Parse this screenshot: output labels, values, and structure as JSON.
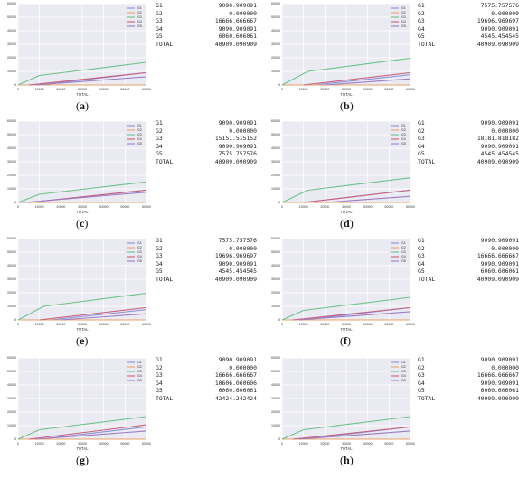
{
  "colors": {
    "G1": "#8a8fd6",
    "G2": "#e8a06b",
    "G3": "#6ec28a",
    "G4": "#c8607a",
    "G5": "#9c7cc4",
    "grid": "#ffffff",
    "bg": "#eaeaf2"
  },
  "panels": [
    {
      "label": "a",
      "stats": [
        {
          "name": "G1",
          "value": "9090.909091"
        },
        {
          "name": "G2",
          "value": "0.000000"
        },
        {
          "name": "G3",
          "value": "16666.666667"
        },
        {
          "name": "G4",
          "value": "9090.909091"
        },
        {
          "name": "G5",
          "value": "6060.606061"
        },
        {
          "name": "TOTAL",
          "value": "40909.090909"
        }
      ]
    },
    {
      "label": "b",
      "stats": [
        {
          "name": "G1",
          "value": "7575.757576"
        },
        {
          "name": "G2",
          "value": "0.000000"
        },
        {
          "name": "G3",
          "value": "19696.969697"
        },
        {
          "name": "G4",
          "value": "9090.909091"
        },
        {
          "name": "G5",
          "value": "4545.454545"
        },
        {
          "name": "TOTAL",
          "value": "40909.090909"
        }
      ]
    },
    {
      "label": "c",
      "stats": [
        {
          "name": "G1",
          "value": "9090.909091"
        },
        {
          "name": "G2",
          "value": "0.000000"
        },
        {
          "name": "G3",
          "value": "15151.515152"
        },
        {
          "name": "G4",
          "value": "9090.909091"
        },
        {
          "name": "G5",
          "value": "7575.757576"
        },
        {
          "name": "TOTAL",
          "value": "40909.090909"
        }
      ]
    },
    {
      "label": "d",
      "stats": [
        {
          "name": "G1",
          "value": "9090.909091"
        },
        {
          "name": "G2",
          "value": "0.000000"
        },
        {
          "name": "G3",
          "value": "18181.818182"
        },
        {
          "name": "G4",
          "value": "9090.909091"
        },
        {
          "name": "G5",
          "value": "4545.454545"
        },
        {
          "name": "TOTAL",
          "value": "40909.090909"
        }
      ]
    },
    {
      "label": "e",
      "stats": [
        {
          "name": "G1",
          "value": "7575.757576"
        },
        {
          "name": "G2",
          "value": "0.000000"
        },
        {
          "name": "G3",
          "value": "19696.969697"
        },
        {
          "name": "G4",
          "value": "9090.909091"
        },
        {
          "name": "G5",
          "value": "4545.454545"
        },
        {
          "name": "TOTAL",
          "value": "40909.090909"
        }
      ]
    },
    {
      "label": "f",
      "stats": [
        {
          "name": "G1",
          "value": "9090.909091"
        },
        {
          "name": "G2",
          "value": "0.000000"
        },
        {
          "name": "G3",
          "value": "16666.666667"
        },
        {
          "name": "G4",
          "value": "9090.909091"
        },
        {
          "name": "G5",
          "value": "6060.606061"
        },
        {
          "name": "TOTAL",
          "value": "40909.090909"
        }
      ]
    },
    {
      "label": "g",
      "stats": [
        {
          "name": "G1",
          "value": "9090.909091"
        },
        {
          "name": "G2",
          "value": "0.000000"
        },
        {
          "name": "G3",
          "value": "16666.666667"
        },
        {
          "name": "G4",
          "value": "10606.060606"
        },
        {
          "name": "G5",
          "value": "6060.606061"
        },
        {
          "name": "TOTAL",
          "value": "42424.242424"
        }
      ]
    },
    {
      "label": "h",
      "stats": [
        {
          "name": "G1",
          "value": "9090.909091"
        },
        {
          "name": "G2",
          "value": "0.000000"
        },
        {
          "name": "G3",
          "value": "16666.666667"
        },
        {
          "name": "G4",
          "value": "9090.909091"
        },
        {
          "name": "G5",
          "value": "6060.606061"
        },
        {
          "name": "TOTAL",
          "value": "40909.090909"
        }
      ]
    }
  ],
  "chart_data": [
    {
      "panel": "a",
      "type": "line",
      "xlabel": "TOTAL",
      "ylabel": "",
      "xlim": [
        0,
        60000
      ],
      "ylim": [
        0,
        60000
      ],
      "xticks": [
        0,
        10000,
        20000,
        30000,
        40000,
        50000,
        60000
      ],
      "yticks": [
        0,
        10000,
        20000,
        30000,
        40000,
        50000,
        60000
      ],
      "grid": true,
      "legend": "top-right",
      "series": [
        {
          "name": "G1",
          "x": [
            10000,
            60000
          ],
          "y": [
            0,
            9091
          ]
        },
        {
          "name": "G2",
          "x": [
            0,
            60000
          ],
          "y": [
            0,
            0
          ]
        },
        {
          "name": "G3",
          "x": [
            0,
            10000,
            60000
          ],
          "y": [
            0,
            7000,
            16667
          ]
        },
        {
          "name": "G4",
          "x": [
            5000,
            60000
          ],
          "y": [
            0,
            9091
          ]
        },
        {
          "name": "G5",
          "x": [
            8000,
            60000
          ],
          "y": [
            0,
            6061
          ]
        }
      ]
    },
    {
      "panel": "b",
      "type": "line",
      "xlabel": "TOTAL",
      "ylabel": "",
      "xlim": [
        0,
        60000
      ],
      "ylim": [
        0,
        60000
      ],
      "xticks": [
        0,
        10000,
        20000,
        30000,
        40000,
        50000,
        60000
      ],
      "yticks": [
        0,
        10000,
        20000,
        30000,
        40000,
        50000,
        60000
      ],
      "grid": true,
      "legend": "top-right",
      "series": [
        {
          "name": "G1",
          "x": [
            15000,
            60000
          ],
          "y": [
            0,
            7576
          ]
        },
        {
          "name": "G2",
          "x": [
            0,
            60000
          ],
          "y": [
            0,
            0
          ]
        },
        {
          "name": "G3",
          "x": [
            0,
            12000,
            60000
          ],
          "y": [
            0,
            10000,
            19697
          ]
        },
        {
          "name": "G4",
          "x": [
            10000,
            60000
          ],
          "y": [
            0,
            9091
          ]
        },
        {
          "name": "G5",
          "x": [
            20000,
            60000
          ],
          "y": [
            0,
            4545
          ]
        }
      ]
    },
    {
      "panel": "c",
      "type": "line",
      "xlabel": "TOTAL",
      "ylabel": "",
      "xlim": [
        0,
        60000
      ],
      "ylim": [
        0,
        60000
      ],
      "xticks": [
        0,
        10000,
        20000,
        30000,
        40000,
        50000,
        60000
      ],
      "yticks": [
        0,
        10000,
        20000,
        30000,
        40000,
        50000,
        60000
      ],
      "grid": true,
      "legend": "top-right",
      "series": [
        {
          "name": "G1",
          "x": [
            5000,
            60000
          ],
          "y": [
            0,
            9091
          ]
        },
        {
          "name": "G2",
          "x": [
            0,
            60000
          ],
          "y": [
            0,
            0
          ]
        },
        {
          "name": "G3",
          "x": [
            0,
            10000,
            60000
          ],
          "y": [
            0,
            6000,
            15152
          ]
        },
        {
          "name": "G4",
          "x": [
            5000,
            60000
          ],
          "y": [
            0,
            9091
          ]
        },
        {
          "name": "G5",
          "x": [
            3000,
            60000
          ],
          "y": [
            0,
            7576
          ]
        }
      ]
    },
    {
      "panel": "d",
      "type": "line",
      "xlabel": "TOTAL",
      "ylabel": "",
      "xlim": [
        0,
        60000
      ],
      "ylim": [
        0,
        60000
      ],
      "xticks": [
        0,
        10000,
        20000,
        30000,
        40000,
        50000,
        60000
      ],
      "yticks": [
        0,
        10000,
        20000,
        30000,
        40000,
        50000,
        60000
      ],
      "grid": true,
      "legend": "top-right",
      "series": [
        {
          "name": "G1",
          "x": [
            10000,
            60000
          ],
          "y": [
            0,
            9091
          ]
        },
        {
          "name": "G2",
          "x": [
            0,
            60000
          ],
          "y": [
            0,
            0
          ]
        },
        {
          "name": "G3",
          "x": [
            0,
            12000,
            60000
          ],
          "y": [
            0,
            9000,
            18182
          ]
        },
        {
          "name": "G4",
          "x": [
            10000,
            60000
          ],
          "y": [
            0,
            9091
          ]
        },
        {
          "name": "G5",
          "x": [
            20000,
            60000
          ],
          "y": [
            0,
            4545
          ]
        }
      ]
    },
    {
      "panel": "e",
      "type": "line",
      "xlabel": "TOTAL",
      "ylabel": "",
      "xlim": [
        0,
        60000
      ],
      "ylim": [
        0,
        60000
      ],
      "xticks": [
        0,
        10000,
        20000,
        30000,
        40000,
        50000,
        60000
      ],
      "yticks": [
        0,
        10000,
        20000,
        30000,
        40000,
        50000,
        60000
      ],
      "grid": true,
      "legend": "top-right",
      "series": [
        {
          "name": "G1",
          "x": [
            15000,
            60000
          ],
          "y": [
            0,
            7576
          ]
        },
        {
          "name": "G2",
          "x": [
            0,
            60000
          ],
          "y": [
            0,
            0
          ]
        },
        {
          "name": "G3",
          "x": [
            0,
            12000,
            60000
          ],
          "y": [
            0,
            10000,
            19697
          ]
        },
        {
          "name": "G4",
          "x": [
            10000,
            60000
          ],
          "y": [
            0,
            9091
          ]
        },
        {
          "name": "G5",
          "x": [
            20000,
            60000
          ],
          "y": [
            0,
            4545
          ]
        }
      ]
    },
    {
      "panel": "f",
      "type": "line",
      "xlabel": "TOTAL",
      "ylabel": "",
      "xlim": [
        0,
        60000
      ],
      "ylim": [
        0,
        60000
      ],
      "xticks": [
        0,
        10000,
        20000,
        30000,
        40000,
        50000,
        60000
      ],
      "yticks": [
        0,
        10000,
        20000,
        30000,
        40000,
        50000,
        60000
      ],
      "grid": true,
      "legend": "top-right",
      "series": [
        {
          "name": "G1",
          "x": [
            10000,
            60000
          ],
          "y": [
            0,
            9091
          ]
        },
        {
          "name": "G2",
          "x": [
            0,
            60000
          ],
          "y": [
            0,
            0
          ]
        },
        {
          "name": "G3",
          "x": [
            0,
            10000,
            60000
          ],
          "y": [
            0,
            7000,
            16667
          ]
        },
        {
          "name": "G4",
          "x": [
            5000,
            60000
          ],
          "y": [
            0,
            9091
          ]
        },
        {
          "name": "G5",
          "x": [
            8000,
            60000
          ],
          "y": [
            0,
            6061
          ]
        }
      ]
    },
    {
      "panel": "g",
      "type": "line",
      "xlabel": "TOTAL",
      "ylabel": "",
      "xlim": [
        0,
        60000
      ],
      "ylim": [
        0,
        60000
      ],
      "xticks": [
        0,
        10000,
        20000,
        30000,
        40000,
        50000,
        60000
      ],
      "yticks": [
        0,
        10000,
        20000,
        30000,
        40000,
        50000,
        60000
      ],
      "grid": true,
      "legend": "top-right",
      "series": [
        {
          "name": "G1",
          "x": [
            10000,
            60000
          ],
          "y": [
            0,
            9091
          ]
        },
        {
          "name": "G2",
          "x": [
            0,
            60000
          ],
          "y": [
            0,
            0
          ]
        },
        {
          "name": "G3",
          "x": [
            0,
            10000,
            60000
          ],
          "y": [
            0,
            7000,
            16667
          ]
        },
        {
          "name": "G4",
          "x": [
            5000,
            60000
          ],
          "y": [
            0,
            10606
          ]
        },
        {
          "name": "G5",
          "x": [
            8000,
            60000
          ],
          "y": [
            0,
            6061
          ]
        }
      ]
    },
    {
      "panel": "h",
      "type": "line",
      "xlabel": "TOTAL",
      "ylabel": "",
      "xlim": [
        0,
        60000
      ],
      "ylim": [
        0,
        60000
      ],
      "xticks": [
        0,
        10000,
        20000,
        30000,
        40000,
        50000,
        60000
      ],
      "yticks": [
        0,
        10000,
        20000,
        30000,
        40000,
        50000,
        60000
      ],
      "grid": true,
      "legend": "top-right",
      "series": [
        {
          "name": "G1",
          "x": [
            10000,
            60000
          ],
          "y": [
            0,
            9091
          ]
        },
        {
          "name": "G2",
          "x": [
            0,
            60000
          ],
          "y": [
            0,
            0
          ]
        },
        {
          "name": "G3",
          "x": [
            0,
            10000,
            60000
          ],
          "y": [
            0,
            7000,
            16667
          ]
        },
        {
          "name": "G4",
          "x": [
            5000,
            60000
          ],
          "y": [
            0,
            9091
          ]
        },
        {
          "name": "G5",
          "x": [
            8000,
            60000
          ],
          "y": [
            0,
            6061
          ]
        }
      ]
    }
  ]
}
